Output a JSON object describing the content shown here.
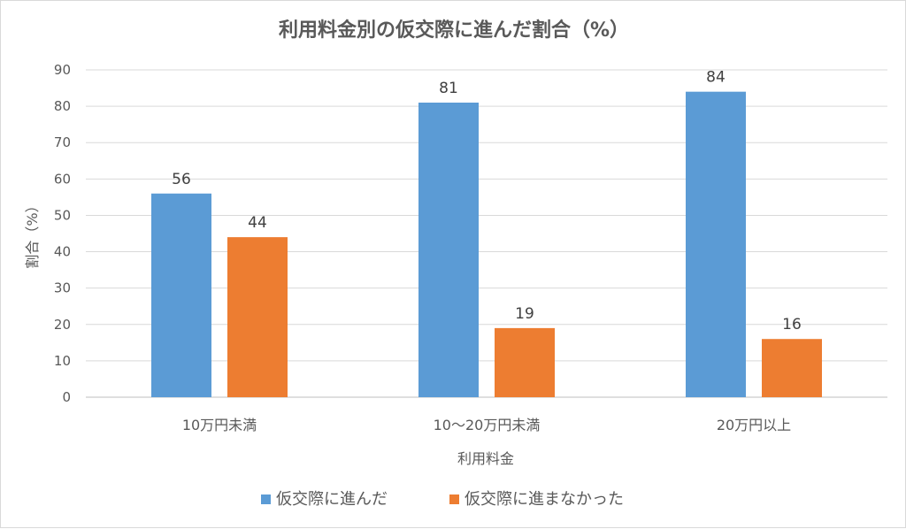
{
  "chart_data": {
    "type": "bar",
    "title": "利用料金別の仮交際に進んだ割合（%）",
    "xlabel": "利用料金",
    "ylabel": "割合（%）",
    "categories": [
      "10万円未満",
      "10～20万円未満",
      "20万円以上"
    ],
    "series": [
      {
        "name": "仮交際に進んだ",
        "values": [
          56,
          81,
          84
        ],
        "color": "#5B9BD5"
      },
      {
        "name": "仮交際に進まなかった",
        "values": [
          44,
          19,
          16
        ],
        "color": "#ED7D31"
      }
    ],
    "ylim": [
      0,
      90
    ],
    "yticks": [
      0,
      10,
      20,
      30,
      40,
      50,
      60,
      70,
      80,
      90
    ],
    "grid": true,
    "legend_position": "bottom",
    "data_labels": true
  }
}
